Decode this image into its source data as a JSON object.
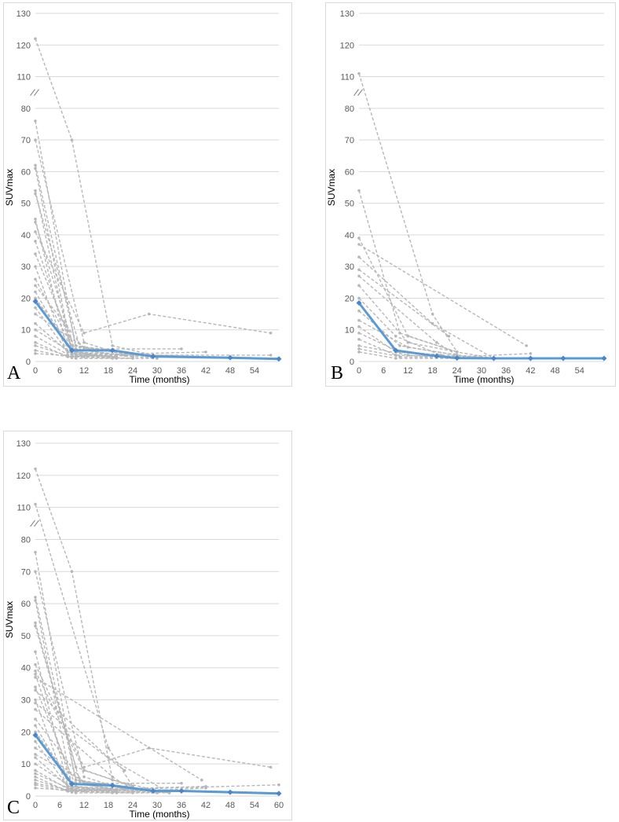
{
  "chart_data": [
    {
      "panel_label": "A",
      "type": "line",
      "xlabel": "Time (months)",
      "ylabel": "SUVmax",
      "y_ticks": [
        "0",
        "10",
        "20",
        "30",
        "40",
        "50",
        "60",
        "70",
        "80",
        "110",
        "120",
        "130"
      ],
      "y_break": "between 80 and 110",
      "x_ticks": [
        "0",
        "6",
        "12",
        "18",
        "24",
        "30",
        "36",
        "42",
        "48",
        "54"
      ],
      "xlim": [
        0,
        60
      ],
      "grid": "horizontal",
      "mean_series": {
        "x": [
          0,
          9,
          19,
          29,
          48,
          60
        ],
        "y": [
          19,
          3.5,
          3.5,
          1.6,
          1.2,
          0.8
        ]
      },
      "individual_series": [
        {
          "x": [
            0,
            9,
            19,
            29,
            60
          ],
          "y": [
            122,
            70,
            5,
            2,
            1
          ]
        },
        {
          "x": [
            0,
            10,
            20,
            30
          ],
          "y": [
            76,
            4,
            2,
            1
          ]
        },
        {
          "x": [
            0,
            12,
            22
          ],
          "y": [
            70,
            6,
            2
          ]
        },
        {
          "x": [
            0,
            10,
            28
          ],
          "y": [
            62,
            5,
            2
          ]
        },
        {
          "x": [
            0,
            9,
            24
          ],
          "y": [
            61,
            3,
            1.5
          ]
        },
        {
          "x": [
            0,
            9,
            18
          ],
          "y": [
            54,
            2.5,
            1.5
          ]
        },
        {
          "x": [
            0,
            11,
            24
          ],
          "y": [
            53,
            4.5,
            2
          ]
        },
        {
          "x": [
            0,
            8,
            20
          ],
          "y": [
            45,
            3,
            1.5
          ]
        },
        {
          "x": [
            0,
            10
          ],
          "y": [
            44,
            2.5
          ]
        },
        {
          "x": [
            0,
            12,
            28,
            58
          ],
          "y": [
            41,
            9,
            15,
            9
          ]
        },
        {
          "x": [
            0,
            9,
            22
          ],
          "y": [
            38,
            4,
            2
          ]
        },
        {
          "x": [
            0,
            10,
            20
          ],
          "y": [
            34,
            3,
            1
          ]
        },
        {
          "x": [
            0,
            8,
            18
          ],
          "y": [
            30,
            2,
            1.5
          ]
        },
        {
          "x": [
            0,
            9
          ],
          "y": [
            26,
            5
          ]
        },
        {
          "x": [
            0,
            12,
            36
          ],
          "y": [
            24,
            4,
            4
          ]
        },
        {
          "x": [
            0,
            9,
            20
          ],
          "y": [
            22,
            2.5,
            1.5
          ]
        },
        {
          "x": [
            0,
            10,
            30
          ],
          "y": [
            20,
            3,
            1.5
          ]
        },
        {
          "x": [
            0,
            8
          ],
          "y": [
            17,
            3
          ]
        },
        {
          "x": [
            0,
            12,
            24
          ],
          "y": [
            15,
            4.5,
            2.5
          ]
        },
        {
          "x": [
            0,
            9,
            20
          ],
          "y": [
            12,
            2,
            1.5
          ]
        },
        {
          "x": [
            0,
            10,
            42
          ],
          "y": [
            10,
            2,
            3
          ]
        },
        {
          "x": [
            0,
            9,
            19
          ],
          "y": [
            8,
            1.5,
            1
          ]
        },
        {
          "x": [
            0,
            8,
            20,
            58
          ],
          "y": [
            6,
            1.5,
            2,
            2
          ]
        },
        {
          "x": [
            0,
            10,
            30
          ],
          "y": [
            5,
            1,
            1
          ]
        },
        {
          "x": [
            0,
            9
          ],
          "y": [
            3.5,
            1.2
          ]
        },
        {
          "x": [
            0,
            12,
            24
          ],
          "y": [
            2.5,
            1.5,
            1
          ]
        }
      ]
    },
    {
      "panel_label": "B",
      "type": "line",
      "xlabel": "Time (months)",
      "ylabel": "SUVmax",
      "y_ticks": [
        "0",
        "10",
        "20",
        "30",
        "40",
        "50",
        "60",
        "70",
        "80",
        "110",
        "120",
        "130"
      ],
      "y_break": "between 80 and 110",
      "x_ticks": [
        "0",
        "6",
        "12",
        "18",
        "24",
        "30",
        "36",
        "42",
        "48",
        "54"
      ],
      "xlim": [
        0,
        60
      ],
      "grid": "horizontal",
      "mean_series": {
        "x": [
          0,
          9,
          19,
          24,
          33,
          42,
          50,
          60
        ],
        "y": [
          18.5,
          3.5,
          1.7,
          1.1,
          1,
          1,
          1,
          1
        ]
      },
      "individual_series": [
        {
          "x": [
            0,
            18,
            24
          ],
          "y": [
            111,
            15,
            3
          ]
        },
        {
          "x": [
            0,
            10,
            24
          ],
          "y": [
            54,
            9,
            3
          ]
        },
        {
          "x": [
            0,
            12,
            24
          ],
          "y": [
            39,
            8,
            3
          ]
        },
        {
          "x": [
            0,
            41
          ],
          "y": [
            37,
            5
          ]
        },
        {
          "x": [
            0,
            18,
            33
          ],
          "y": [
            33,
            12,
            1
          ]
        },
        {
          "x": [
            0,
            22
          ],
          "y": [
            29,
            8
          ]
        },
        {
          "x": [
            0,
            19,
            24
          ],
          "y": [
            27,
            6,
            2
          ]
        },
        {
          "x": [
            0,
            12,
            24,
            33
          ],
          "y": [
            24,
            6,
            3,
            1
          ]
        },
        {
          "x": [
            0,
            9,
            20
          ],
          "y": [
            20,
            8,
            2
          ]
        },
        {
          "x": [
            0,
            10,
            24
          ],
          "y": [
            16,
            5,
            2
          ]
        },
        {
          "x": [
            0,
            12,
            24,
            33
          ],
          "y": [
            13,
            4.5,
            2,
            1
          ]
        },
        {
          "x": [
            0,
            9,
            24
          ],
          "y": [
            11,
            3,
            1.5
          ]
        },
        {
          "x": [
            0,
            10,
            33
          ],
          "y": [
            9,
            3,
            1
          ]
        },
        {
          "x": [
            0,
            9,
            24,
            42
          ],
          "y": [
            7,
            2,
            1.5,
            2.5
          ]
        },
        {
          "x": [
            0,
            12,
            24
          ],
          "y": [
            5,
            2,
            1
          ]
        },
        {
          "x": [
            0,
            10,
            33
          ],
          "y": [
            4,
            1.5,
            1
          ]
        },
        {
          "x": [
            0,
            9,
            24
          ],
          "y": [
            3,
            1,
            1
          ]
        }
      ]
    },
    {
      "panel_label": "C",
      "type": "line",
      "xlabel": "Time (months)",
      "ylabel": "SUVmax",
      "y_ticks": [
        "0",
        "10",
        "20",
        "30",
        "40",
        "50",
        "60",
        "70",
        "80",
        "110",
        "120",
        "130"
      ],
      "y_break": "between 80 and 110",
      "x_ticks": [
        "0",
        "6",
        "12",
        "18",
        "24",
        "30",
        "36",
        "42",
        "48",
        "54",
        "60"
      ],
      "xlim": [
        0,
        60
      ],
      "grid": "horizontal",
      "mean_series": {
        "x": [
          0,
          9,
          19,
          29,
          36,
          48,
          60
        ],
        "y": [
          19,
          3.8,
          3.3,
          1.6,
          1.6,
          1.2,
          0.8
        ]
      },
      "individual_series": [
        {
          "x": [
            0,
            9,
            19,
            29,
            60
          ],
          "y": [
            122,
            70,
            5,
            2,
            1
          ]
        },
        {
          "x": [
            0,
            18,
            24
          ],
          "y": [
            111,
            15,
            3
          ]
        },
        {
          "x": [
            0,
            10,
            20,
            30
          ],
          "y": [
            76,
            4,
            2,
            1
          ]
        },
        {
          "x": [
            0,
            12,
            22
          ],
          "y": [
            70,
            6,
            2
          ]
        },
        {
          "x": [
            0,
            10,
            28
          ],
          "y": [
            62,
            5,
            2
          ]
        },
        {
          "x": [
            0,
            9,
            24
          ],
          "y": [
            61,
            3,
            1.5
          ]
        },
        {
          "x": [
            0,
            10,
            24
          ],
          "y": [
            54,
            9,
            3
          ]
        },
        {
          "x": [
            0,
            11,
            24
          ],
          "y": [
            53,
            4.5,
            2
          ]
        },
        {
          "x": [
            0,
            8,
            20
          ],
          "y": [
            45,
            3,
            1.5
          ]
        },
        {
          "x": [
            0,
            12,
            28,
            58
          ],
          "y": [
            41,
            9,
            15,
            9
          ]
        },
        {
          "x": [
            0,
            12,
            24
          ],
          "y": [
            39,
            8,
            3
          ]
        },
        {
          "x": [
            0,
            9,
            22
          ],
          "y": [
            38,
            4,
            2
          ]
        },
        {
          "x": [
            0,
            41
          ],
          "y": [
            37,
            5
          ]
        },
        {
          "x": [
            0,
            10,
            20
          ],
          "y": [
            34,
            3,
            1
          ]
        },
        {
          "x": [
            0,
            18,
            33
          ],
          "y": [
            33,
            12,
            1
          ]
        },
        {
          "x": [
            0,
            8,
            18
          ],
          "y": [
            30,
            2,
            1.5
          ]
        },
        {
          "x": [
            0,
            22
          ],
          "y": [
            29,
            8
          ]
        },
        {
          "x": [
            0,
            19,
            24
          ],
          "y": [
            27,
            6,
            2
          ]
        },
        {
          "x": [
            0,
            12,
            36
          ],
          "y": [
            24,
            4,
            4
          ]
        },
        {
          "x": [
            0,
            9,
            20
          ],
          "y": [
            22,
            2.5,
            1.5
          ]
        },
        {
          "x": [
            0,
            10,
            30
          ],
          "y": [
            20,
            3,
            1.5
          ]
        },
        {
          "x": [
            0,
            8
          ],
          "y": [
            17,
            3
          ]
        },
        {
          "x": [
            0,
            12,
            24
          ],
          "y": [
            15,
            4.5,
            2.5
          ]
        },
        {
          "x": [
            0,
            12,
            24,
            33
          ],
          "y": [
            13,
            4.5,
            2,
            1
          ]
        },
        {
          "x": [
            0,
            9,
            20
          ],
          "y": [
            12,
            2,
            1.5
          ]
        },
        {
          "x": [
            0,
            10,
            42
          ],
          "y": [
            10,
            2,
            3
          ]
        },
        {
          "x": [
            0,
            9,
            19
          ],
          "y": [
            8,
            1.5,
            1
          ]
        },
        {
          "x": [
            0,
            9,
            24,
            42
          ],
          "y": [
            7,
            2,
            1.5,
            2.5
          ]
        },
        {
          "x": [
            0,
            8,
            20,
            60
          ],
          "y": [
            6,
            1.5,
            2,
            3.5
          ]
        },
        {
          "x": [
            0,
            10,
            30
          ],
          "y": [
            5,
            1,
            1
          ]
        },
        {
          "x": [
            0,
            10,
            33
          ],
          "y": [
            4,
            1.5,
            1
          ]
        },
        {
          "x": [
            0,
            9
          ],
          "y": [
            3.5,
            1.2
          ]
        },
        {
          "x": [
            0,
            12,
            24
          ],
          "y": [
            2.5,
            1.5,
            1
          ]
        }
      ]
    }
  ],
  "colors": {
    "individual": "#b7b7b7",
    "mean": "#5b9bd5",
    "grid": "#d9d9d9",
    "tick_text": "#595959"
  }
}
